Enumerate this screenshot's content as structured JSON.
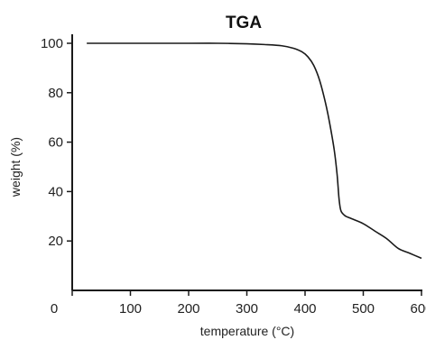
{
  "chart_data": {
    "type": "line",
    "title": "TGA",
    "xlabel": "temperature (°C)",
    "ylabel": "weight (%)",
    "xlim": [
      0,
      600
    ],
    "ylim": [
      0,
      100
    ],
    "x_ticks": [
      0,
      100,
      200,
      300,
      400,
      500,
      600
    ],
    "x_tick_labels": [
      "0",
      "100",
      "200",
      "300",
      "400",
      "500",
      "600"
    ],
    "y_ticks": [
      20,
      40,
      60,
      80,
      100
    ],
    "y_tick_labels": [
      "20",
      "40",
      "60",
      "80",
      "100"
    ],
    "grid": false,
    "legend": "none",
    "series": [
      {
        "x": [
          25,
          100,
          200,
          250,
          300,
          330,
          360,
          380,
          395,
          405,
          415,
          425,
          435,
          442,
          450,
          455,
          458,
          460,
          462,
          465,
          470,
          480,
          500,
          520,
          540,
          560,
          580,
          600
        ],
        "y": [
          100,
          100,
          100,
          100,
          99.8,
          99.5,
          99,
          98,
          96.5,
          94.5,
          91,
          85,
          76,
          68,
          57,
          47,
          38,
          34,
          32,
          31,
          30,
          29,
          27,
          24,
          21,
          17,
          15,
          13
        ],
        "color": "#1a1a1a"
      }
    ]
  }
}
